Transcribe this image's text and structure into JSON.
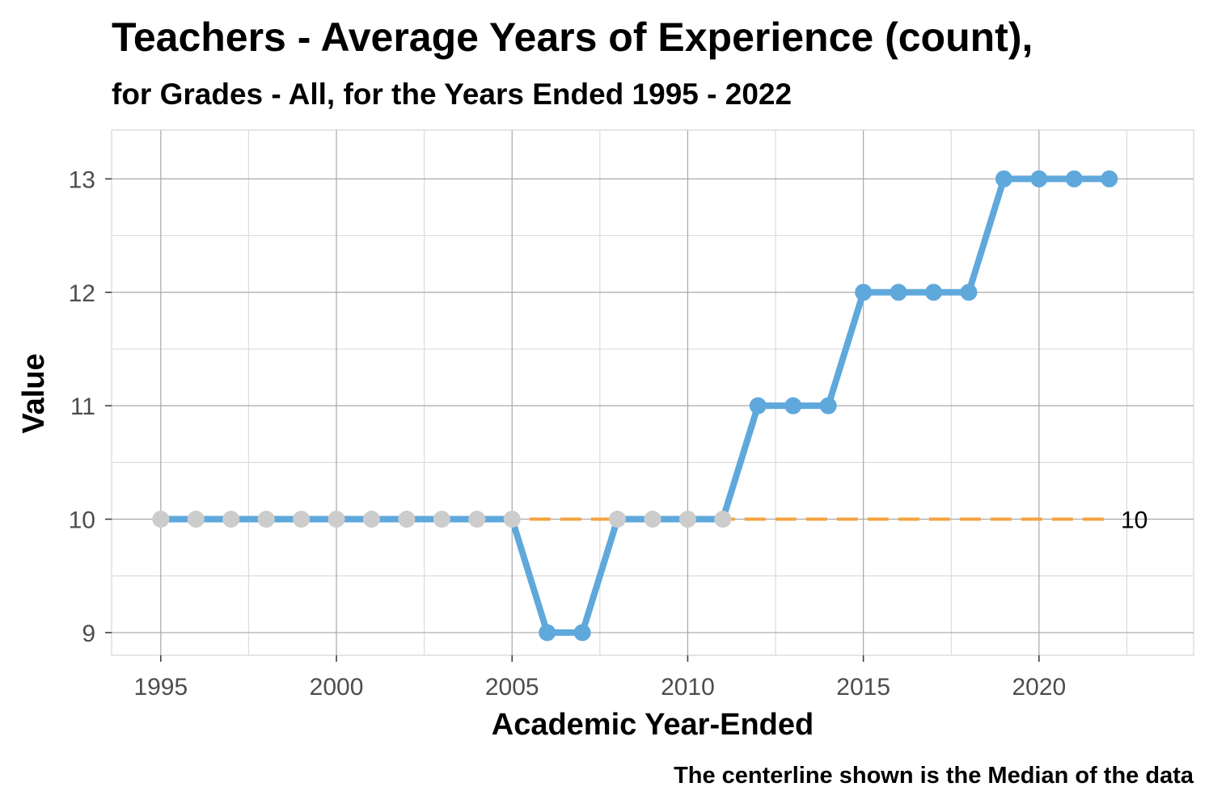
{
  "chart_data": {
    "type": "line",
    "title": "Teachers - Average Years of Experience (count),",
    "subtitle": "for Grades - All, for the Years Ended 1995  -  2022",
    "xlabel": "Academic Year-Ended",
    "ylabel": "Value",
    "caption": "The centerline shown is the Median of the data",
    "x": [
      1995,
      1996,
      1997,
      1998,
      1999,
      2000,
      2001,
      2002,
      2003,
      2004,
      2005,
      2006,
      2007,
      2008,
      2009,
      2010,
      2011,
      2012,
      2013,
      2014,
      2015,
      2016,
      2017,
      2018,
      2019,
      2020,
      2021,
      2022
    ],
    "values": [
      10,
      10,
      10,
      10,
      10,
      10,
      10,
      10,
      10,
      10,
      10,
      9,
      9,
      10,
      10,
      10,
      10,
      11,
      11,
      11,
      12,
      12,
      12,
      12,
      13,
      13,
      13,
      13
    ],
    "xlim": [
      1993.6,
      2024.4
    ],
    "ylim": [
      8.8,
      13.43
    ],
    "xticks": [
      1995,
      2000,
      2005,
      2010,
      2015,
      2020
    ],
    "yticks": [
      9,
      10,
      11,
      12,
      13
    ],
    "centerline": {
      "value": 10,
      "label": "10",
      "statistic": "Median"
    },
    "grid": true,
    "colors": {
      "line": "#5fa8dc",
      "point_off_centerline": "#5fa8dc",
      "point_on_centerline": "#cccccc",
      "centerline": "#f5a340",
      "grid_major": "#a8a8a8",
      "grid_minor": "#dcdcdc",
      "panel_border": "#e6e6e6"
    }
  }
}
